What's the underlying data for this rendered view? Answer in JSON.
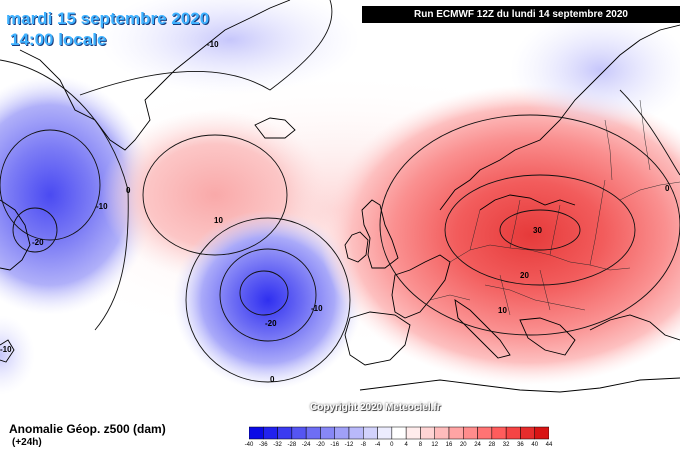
{
  "header": {
    "date": "mardi 15 septembre 2020",
    "local_time": "14:00 locale",
    "run_info": "Run ECMWF 12Z du lundi 14 septembre 2020"
  },
  "copyright": "Copyright 2020 Meteociel.fr",
  "footer": {
    "variable": "Anomalie Géop. z500 (dam)",
    "lead": "(+24h)"
  },
  "contour_labels": [
    {
      "id": "greenland-top",
      "text": "-10"
    },
    {
      "id": "labrador",
      "text": "-10"
    },
    {
      "id": "labrador-minus20",
      "text": "-20"
    },
    {
      "id": "greenland-zero",
      "text": "0"
    },
    {
      "id": "atlantic-high",
      "text": "10"
    },
    {
      "id": "atlantic-low-minus10",
      "text": "-10"
    },
    {
      "id": "atlantic-low-minus20",
      "text": "-20"
    },
    {
      "id": "atlantic-low-zero",
      "text": "0"
    },
    {
      "id": "left-edge",
      "text": "-10"
    },
    {
      "id": "europe-30",
      "text": "30"
    },
    {
      "id": "europe-20",
      "text": "20"
    },
    {
      "id": "europe-10",
      "text": "10"
    },
    {
      "id": "east-zero",
      "text": "0"
    }
  ],
  "legend_scale": {
    "ticks": [
      "-40",
      "-36",
      "-32",
      "-28",
      "-24",
      "-20",
      "-16",
      "-12",
      "-8",
      "-4",
      "0",
      "4",
      "8",
      "12",
      "16",
      "20",
      "24",
      "28",
      "32",
      "36",
      "40",
      "44"
    ],
    "colors": [
      "#0a0ae6",
      "#2222ee",
      "#3b3bf0",
      "#5555f2",
      "#6e6ef4",
      "#8787f6",
      "#a0a0f8",
      "#b9b9fa",
      "#d2d2fc",
      "#ececfe",
      "#ffffff",
      "#ffecec",
      "#ffd4d4",
      "#ffbcbc",
      "#ffa4a4",
      "#ff8c8c",
      "#ff7474",
      "#ff5c5c",
      "#f54444",
      "#e62c2c",
      "#d81414"
    ]
  }
}
